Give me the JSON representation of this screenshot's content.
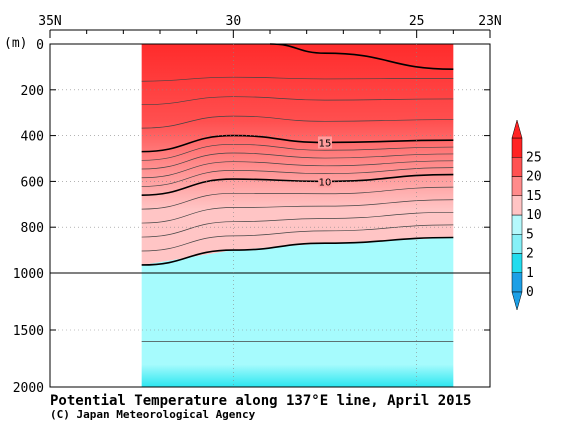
{
  "chart_data": {
    "type": "contour",
    "title": "Potential Temperature along 137°E line, April 2015",
    "credit": "(C) Japan Meteorological Agency",
    "ylabel": "(m)",
    "x_axis": {
      "range": [
        35,
        23
      ],
      "major_ticks": [
        35,
        30,
        25,
        23
      ],
      "tick_labels": [
        "35N",
        "30",
        "25",
        "23N"
      ],
      "data_extent": [
        32.5,
        24.0
      ]
    },
    "y_axis": {
      "direction": "down",
      "upper_range": [
        0,
        1000
      ],
      "lower_range": [
        1000,
        2000
      ],
      "tick_values": [
        0,
        200,
        400,
        600,
        800,
        1000,
        1500,
        2000
      ],
      "tick_labels": [
        "0",
        "200",
        "400",
        "600",
        "800",
        "1000",
        "1500",
        "2000"
      ]
    },
    "labeled_contours": [
      {
        "value": 15,
        "label": "15",
        "depth_at": [
          [
            32.5,
            470
          ],
          [
            30,
            400
          ],
          [
            27.5,
            430
          ],
          [
            24,
            420
          ]
        ]
      },
      {
        "value": 10,
        "label": "10",
        "depth_at": [
          [
            32.5,
            660
          ],
          [
            30,
            590
          ],
          [
            27.5,
            600
          ],
          [
            24,
            570
          ]
        ]
      },
      {
        "value": 5,
        "label": "",
        "depth_at": [
          [
            32.5,
            965
          ],
          [
            30,
            900
          ],
          [
            27.5,
            870
          ],
          [
            24,
            845
          ]
        ]
      },
      {
        "value": 25,
        "label": "",
        "depth_at": [
          [
            29,
            0
          ],
          [
            27.5,
            40
          ],
          [
            24,
            110
          ]
        ]
      }
    ],
    "colorbar": {
      "levels": [
        0,
        1,
        2,
        5,
        10,
        15,
        20,
        25
      ],
      "labels": [
        "0",
        "1",
        "2",
        "5",
        "10",
        "15",
        "20",
        "25"
      ],
      "colors": [
        "#1c9fe6",
        "#22dcee",
        "#86f0f7",
        "#b5f9fc",
        "#ffc4c4",
        "#ff8b8b",
        "#ff5252",
        "#ff2323"
      ]
    },
    "colors": {
      "red_deep": "#ff2b2b",
      "red_mid": "#ff4f4f",
      "pink_mid": "#ff8c8c",
      "pink_light": "#ffc5c5",
      "cyan_light": "#a6fbfd",
      "cyan_deep": "#2ce6f0"
    }
  }
}
